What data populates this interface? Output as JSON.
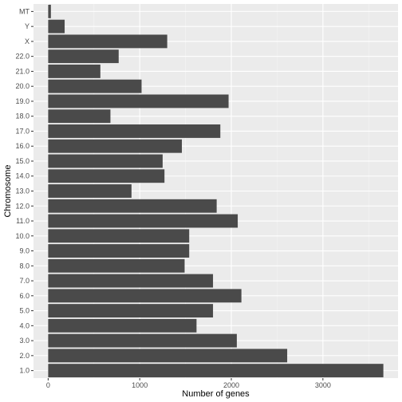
{
  "chart_data": {
    "type": "bar",
    "orientation": "horizontal",
    "xlabel": "Number of genes",
    "ylabel": "Chromosome",
    "xlim": [
      -160,
      3820
    ],
    "xticks": [
      0,
      1000,
      2000,
      3000
    ],
    "grid": true,
    "colors": {
      "panel": "#ebebeb",
      "grid_major": "#ffffff",
      "bar": "#4a4a4a"
    },
    "categories": [
      "1.0",
      "2.0",
      "3.0",
      "4.0",
      "5.0",
      "6.0",
      "7.0",
      "8.0",
      "9.0",
      "10.0",
      "11.0",
      "12.0",
      "13.0",
      "14.0",
      "15.0",
      "16.0",
      "17.0",
      "18.0",
      "19.0",
      "20.0",
      "21.0",
      "22.0",
      "X",
      "Y",
      "MT"
    ],
    "values": [
      3660,
      2610,
      2060,
      1620,
      1800,
      2110,
      1800,
      1490,
      1540,
      1540,
      2070,
      1840,
      910,
      1270,
      1250,
      1460,
      1880,
      680,
      1970,
      1020,
      570,
      770,
      1300,
      180,
      30
    ]
  }
}
